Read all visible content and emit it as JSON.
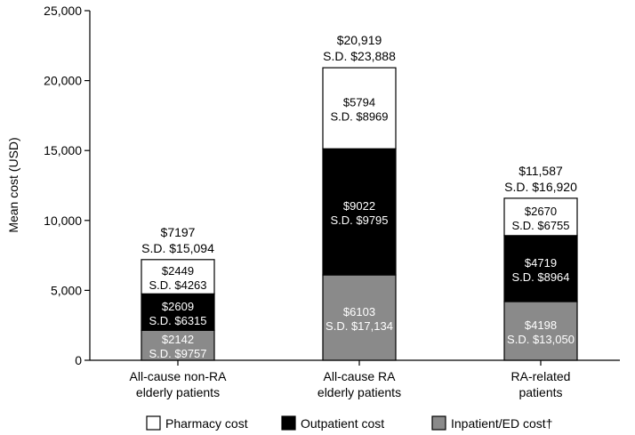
{
  "chart_data": {
    "type": "bar",
    "stacked": true,
    "title": "",
    "xlabel": "",
    "ylabel": "Mean cost (USD)",
    "ylim": [
      0,
      25000
    ],
    "yticks": [
      0,
      5000,
      10000,
      15000,
      20000,
      25000
    ],
    "ytick_labels": [
      "0",
      "5,000",
      "10,000",
      "15,000",
      "20,000",
      "25,000"
    ],
    "grid": false,
    "legend_position": "bottom",
    "categories": [
      [
        "All-cause non-RA",
        "elderly patients"
      ],
      [
        "All-cause RA",
        "elderly patients"
      ],
      [
        "RA-related",
        "patients"
      ]
    ],
    "series": [
      {
        "name": "Inpatient/ED cost†",
        "color": "#8a8a8a",
        "text_color": "#ffffff",
        "values": [
          2142,
          6103,
          4198
        ],
        "labels": [
          "$2142",
          "$6103",
          "$4198"
        ],
        "sd_labels": [
          "S.D. $9757",
          "S.D. $17,134",
          "S.D. $13,050"
        ]
      },
      {
        "name": "Outpatient cost",
        "color": "#000000",
        "text_color": "#ffffff",
        "values": [
          2609,
          9022,
          4719
        ],
        "labels": [
          "$2609",
          "$9022",
          "$4719"
        ],
        "sd_labels": [
          "S.D. $6315",
          "S.D. $9795",
          "S.D. $8964"
        ]
      },
      {
        "name": "Pharmacy cost",
        "color": "#ffffff",
        "text_color": "#000000",
        "values": [
          2449,
          5794,
          2670
        ],
        "labels": [
          "$2449",
          "$5794",
          "$2670"
        ],
        "sd_labels": [
          "S.D. $4263",
          "S.D. $8969",
          "S.D. $6755"
        ]
      }
    ],
    "totals": {
      "values": [
        7197,
        20919,
        11587
      ],
      "labels": [
        "$7197",
        "$20,919",
        "$11,587"
      ],
      "sd_labels": [
        "S.D. $15,094",
        "S.D. $23,888",
        "S.D. $16,920"
      ]
    },
    "legend_order": [
      "Pharmacy cost",
      "Outpatient cost",
      "Inpatient/ED cost†"
    ]
  }
}
